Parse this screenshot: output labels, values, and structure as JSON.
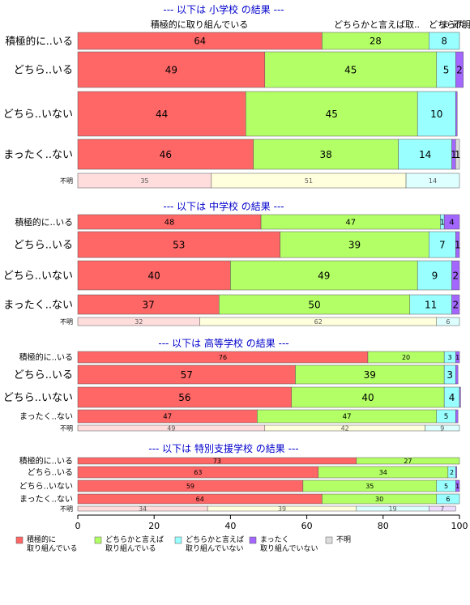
{
  "chart_data": {
    "type": "bar",
    "orientation": "horizontal",
    "stacked": true,
    "xlim": [
      0,
      100
    ],
    "x_ticks": [
      "0",
      "20",
      "40",
      "60",
      "80",
      "100"
    ],
    "grid": false,
    "legend_position": "bottom",
    "top_labels": [
      "積極的に取り組んでいる",
      "どちらかと言えば取..",
      "どちら..",
      "まった..",
      "不明"
    ],
    "legend": [
      {
        "label": "積極的に\n取り組んでいる",
        "color": "#ff6666"
      },
      {
        "label": "どちらかと言えば\n取り組んでいる",
        "color": "#b3ff66"
      },
      {
        "label": "どちらかと言えば\n取り組んでいない",
        "color": "#99ffff"
      },
      {
        "label": "まったく\n取り組んでいない",
        "color": "#a366ff"
      },
      {
        "label": "不明",
        "color": "#dddddd"
      }
    ],
    "panels": [
      {
        "title": "--- 以下は 小学校 の結果 ---",
        "rows": [
          {
            "label": "積極的に..いる",
            "values": [
              64,
              28,
              8,
              0,
              0
            ],
            "labels": [
              "64",
              "28",
              "8",
              "",
              ""
            ]
          },
          {
            "label": "どちら..いる",
            "values": [
              49,
              45,
              5,
              2,
              0
            ],
            "labels": [
              "49",
              "45",
              "5",
              "2",
              ""
            ]
          },
          {
            "label": "どちら..いない",
            "values": [
              44,
              45,
              10,
              0.4,
              0
            ],
            "labels": [
              "44",
              "45",
              "10",
              "",
              ""
            ]
          },
          {
            "label": "まったく..ない",
            "values": [
              46,
              38,
              14,
              1,
              1
            ],
            "labels": [
              "46",
              "38",
              "14",
              "1",
              "1"
            ]
          },
          {
            "label": "不明",
            "values": [
              35,
              51,
              14,
              0,
              0
            ],
            "labels": [
              "35",
              "51",
              "14",
              "",
              ""
            ],
            "faded": true
          }
        ]
      },
      {
        "title": "--- 以下は 中学校 の結果 ---",
        "rows": [
          {
            "label": "積極的に..いる",
            "values": [
              48,
              47,
              1,
              4,
              0
            ],
            "labels": [
              "48",
              "47",
              "1",
              "4",
              ""
            ]
          },
          {
            "label": "どちら..いる",
            "values": [
              53,
              39,
              7,
              1,
              0
            ],
            "labels": [
              "53",
              "39",
              "7",
              "1",
              ""
            ]
          },
          {
            "label": "どちら..いない",
            "values": [
              40,
              49,
              9,
              2,
              0
            ],
            "labels": [
              "40",
              "49",
              "9",
              "2",
              ""
            ]
          },
          {
            "label": "まったく..ない",
            "values": [
              37,
              50,
              11,
              2,
              0
            ],
            "labels": [
              "37",
              "50",
              "11",
              "2",
              ""
            ]
          },
          {
            "label": "不明",
            "values": [
              32,
              62,
              6,
              0,
              0
            ],
            "labels": [
              "32",
              "62",
              "6",
              "",
              ""
            ],
            "faded": true
          }
        ]
      },
      {
        "title": "--- 以下は 高等学校 の結果 ---",
        "rows": [
          {
            "label": "積極的に..いる",
            "values": [
              76,
              20,
              3,
              1,
              0
            ],
            "labels": [
              "76",
              "20",
              "3",
              "1",
              ""
            ]
          },
          {
            "label": "どちら..いる",
            "values": [
              57,
              39,
              3,
              0.6,
              0
            ],
            "labels": [
              "57",
              "39",
              "3",
              "",
              ""
            ]
          },
          {
            "label": "どちら..いない",
            "values": [
              56,
              40,
              4,
              0.3,
              0
            ],
            "labels": [
              "56",
              "40",
              "4",
              "",
              ""
            ]
          },
          {
            "label": "まったく..ない",
            "values": [
              47,
              47,
              5,
              0.6,
              0
            ],
            "labels": [
              "47",
              "47",
              "5",
              "",
              ""
            ]
          },
          {
            "label": "不明",
            "values": [
              49,
              42,
              9,
              0,
              0
            ],
            "labels": [
              "49",
              "42",
              "9",
              "",
              ""
            ],
            "faded": true
          }
        ]
      },
      {
        "title": "--- 以下は 特別支援学校 の結果 ---",
        "rows": [
          {
            "label": "積極的に..いる",
            "values": [
              73,
              27,
              0,
              0,
              0
            ],
            "labels": [
              "73",
              "27",
              "",
              "",
              ""
            ]
          },
          {
            "label": "どちら..いる",
            "values": [
              63,
              34,
              2,
              0.3,
              0
            ],
            "labels": [
              "63",
              "34",
              "2",
              "",
              ""
            ]
          },
          {
            "label": "どちら..いない",
            "values": [
              59,
              35,
              5,
              1,
              0
            ],
            "labels": [
              "59",
              "35",
              "5",
              "1",
              ""
            ]
          },
          {
            "label": "まったく..ない",
            "values": [
              64,
              30,
              6,
              0,
              0
            ],
            "labels": [
              "64",
              "30",
              "6",
              "",
              ""
            ]
          },
          {
            "label": "不明",
            "values": [
              34,
              39,
              19,
              7,
              0
            ],
            "labels": [
              "34",
              "39",
              "19",
              "7",
              ""
            ],
            "faded": true
          }
        ]
      }
    ]
  }
}
